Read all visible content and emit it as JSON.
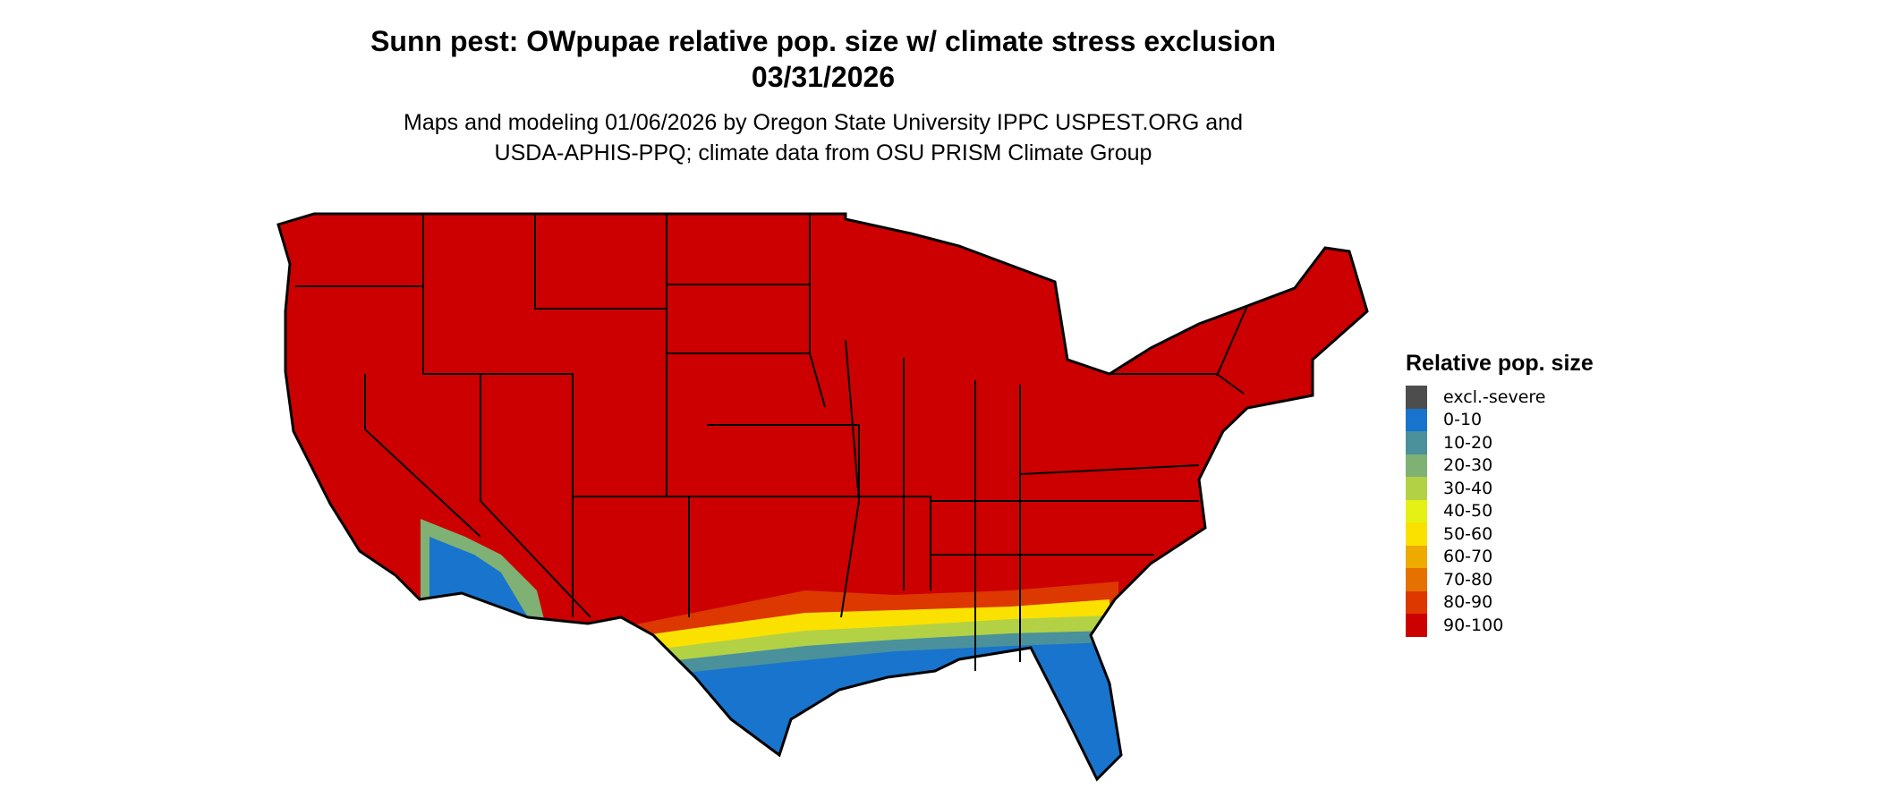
{
  "title": {
    "line1": "Sunn pest: OWpupae relative pop. size w/ climate stress exclusion",
    "line2": "03/31/2026"
  },
  "subtitle": {
    "line1": "Maps and modeling 01/06/2026 by Oregon State University IPPC USPEST.ORG and",
    "line2": "USDA-APHIS-PPQ; climate data from OSU PRISM Climate Group"
  },
  "legend": {
    "title": "Relative pop. size",
    "items": [
      {
        "label": "excl.-severe",
        "color": "#4d4d4d"
      },
      {
        "label": "0-10",
        "color": "#1874cd"
      },
      {
        "label": "10-20",
        "color": "#4a919b"
      },
      {
        "label": "20-30",
        "color": "#7fb174"
      },
      {
        "label": "30-40",
        "color": "#b3d145"
      },
      {
        "label": "40-50",
        "color": "#e5f115"
      },
      {
        "label": "50-60",
        "color": "#fae100"
      },
      {
        "label": "60-70",
        "color": "#eeaa00"
      },
      {
        "label": "70-80",
        "color": "#e57200"
      },
      {
        "label": "80-90",
        "color": "#dc3800"
      },
      {
        "label": "90-100",
        "color": "#cc0000"
      }
    ]
  }
}
